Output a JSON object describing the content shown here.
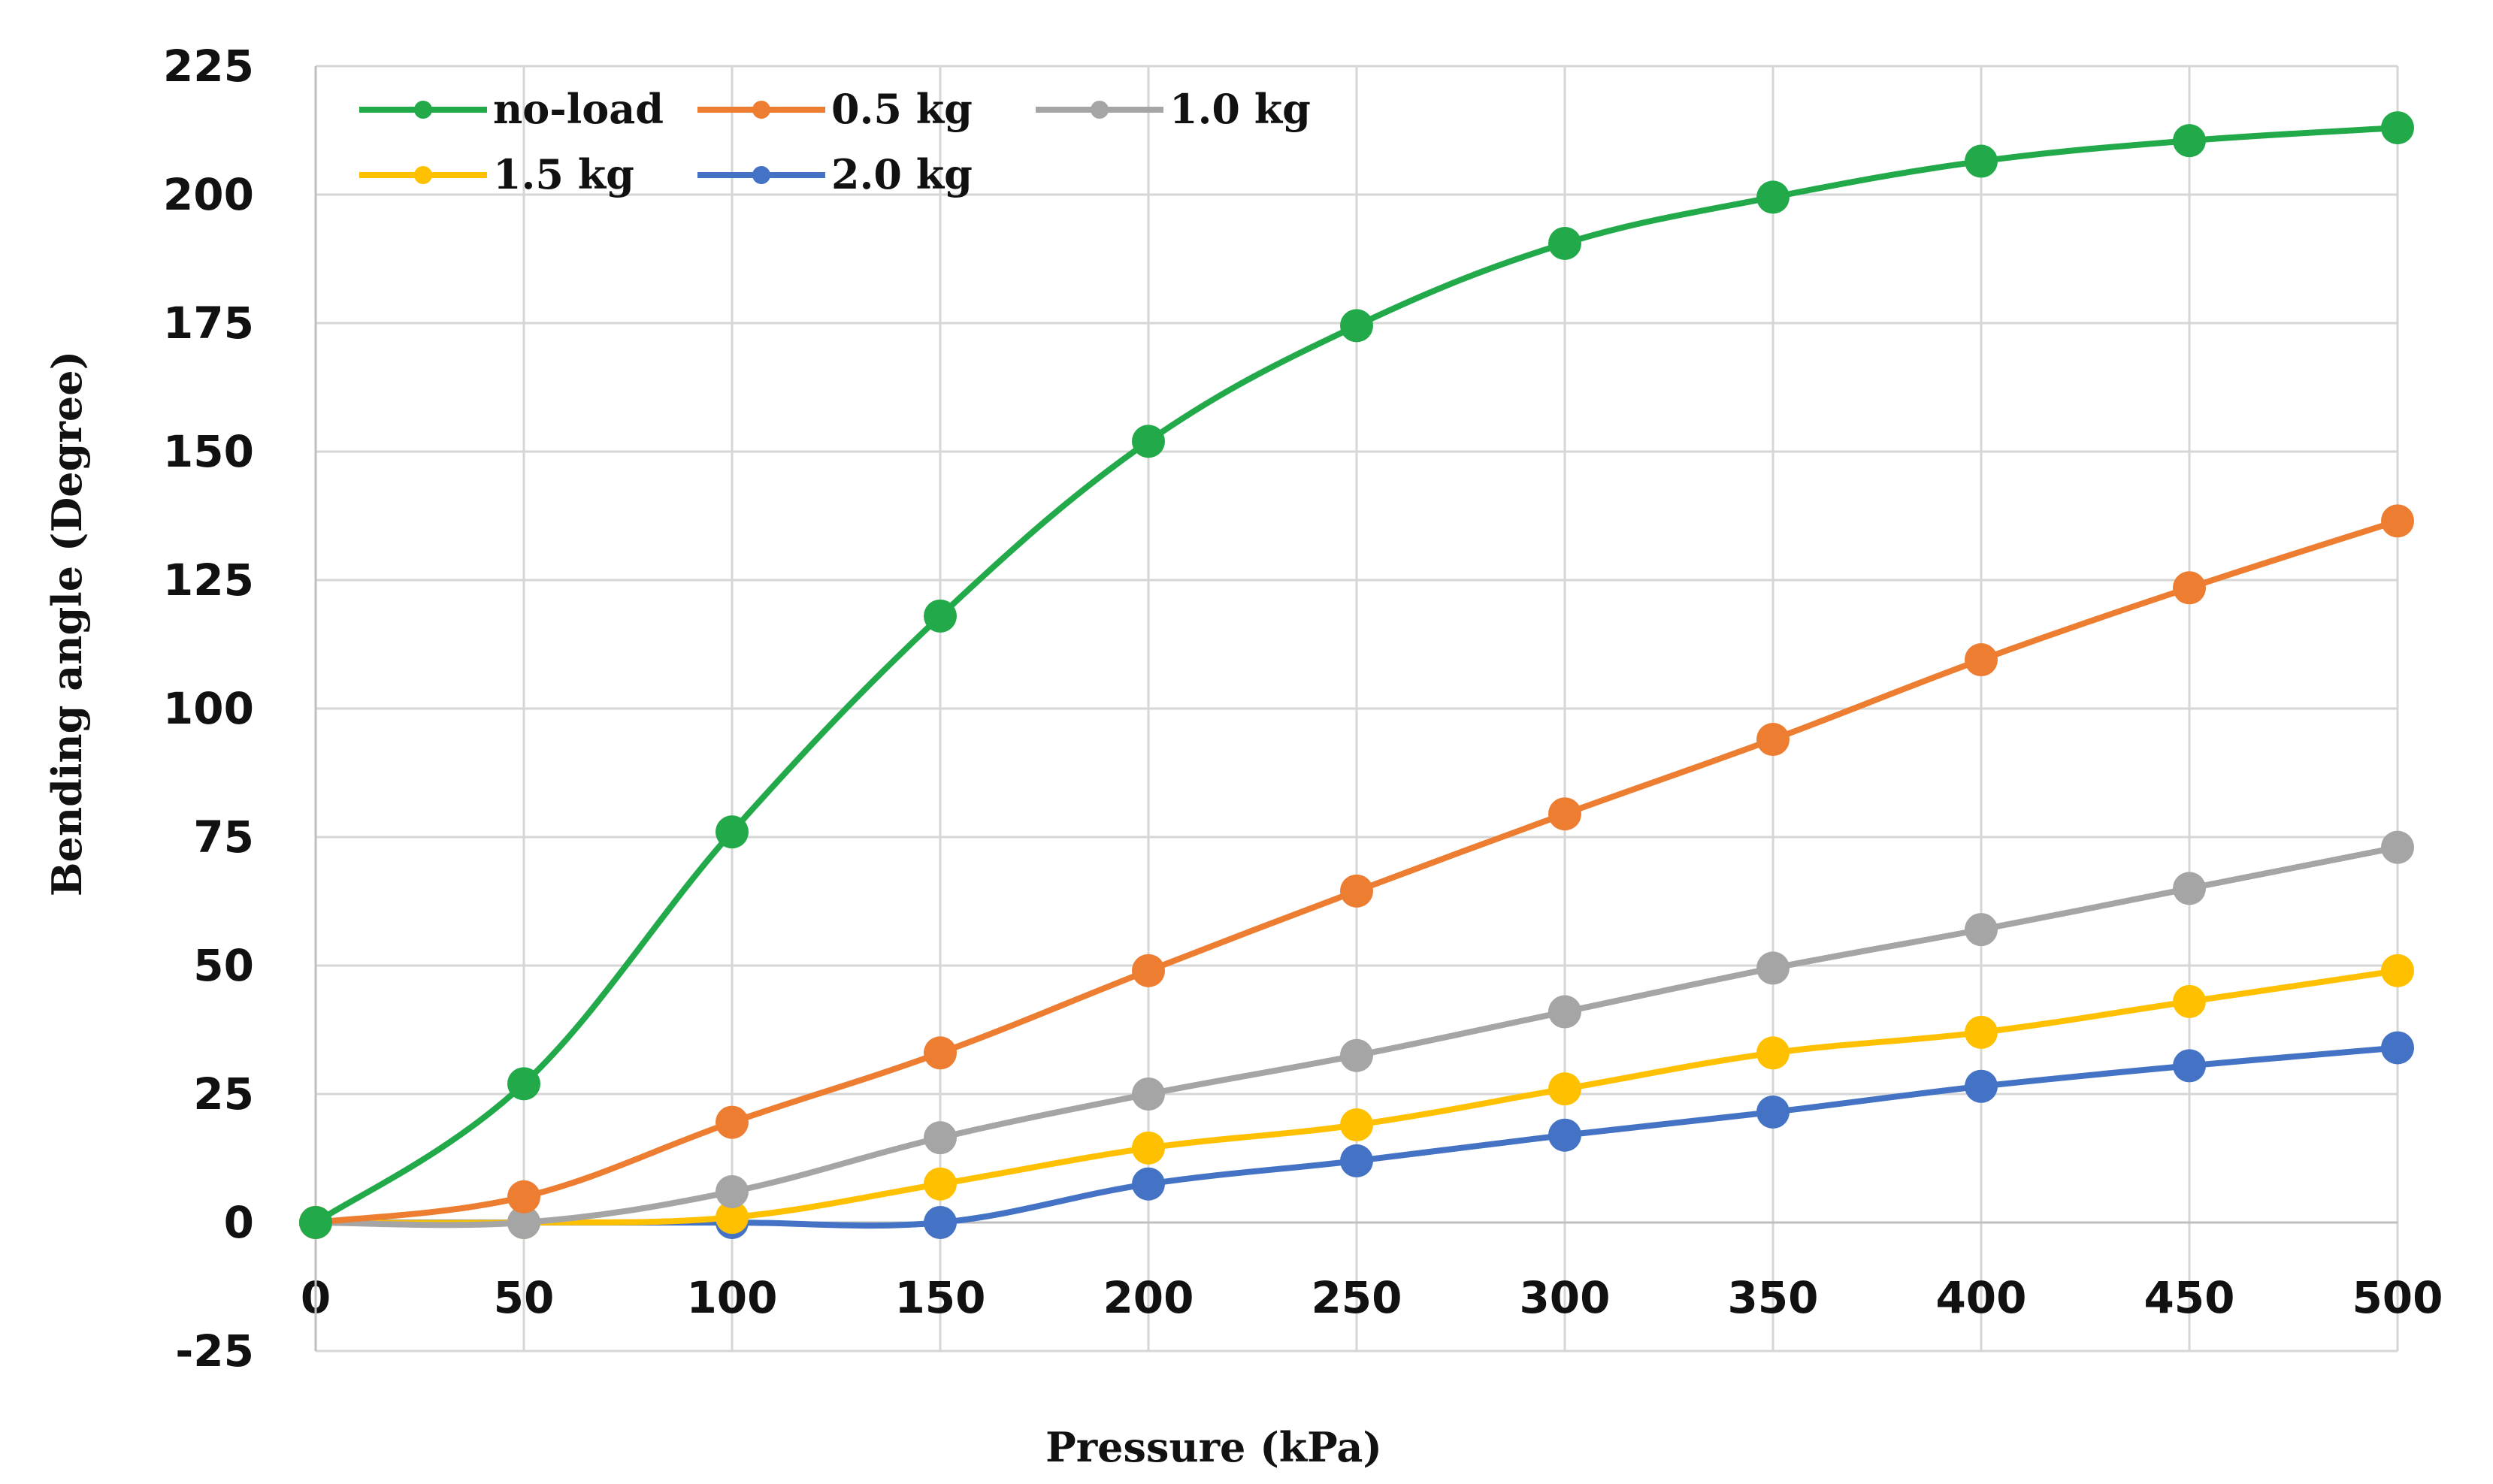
{
  "chart_data": {
    "type": "line",
    "title": "",
    "xlabel": "Pressure (kPa)",
    "ylabel": "Bending angle (Degree)",
    "x": [
      0,
      50,
      100,
      150,
      200,
      250,
      300,
      350,
      400,
      450,
      500
    ],
    "x_tick_labels": [
      "0",
      "50",
      "100",
      "150",
      "200",
      "250",
      "300",
      "350",
      "400",
      "450",
      "500"
    ],
    "xlim": [
      0,
      500
    ],
    "ylim": [
      -25,
      225
    ],
    "y_ticks": [
      -25,
      0,
      25,
      50,
      75,
      100,
      125,
      150,
      175,
      200,
      225
    ],
    "y_tick_labels": [
      "-25",
      "0",
      "25",
      "50",
      "75",
      "100",
      "125",
      "150",
      "175",
      "200",
      "225"
    ],
    "grid": true,
    "legend_position": "top-left",
    "series": [
      {
        "name": "no-load",
        "color": "#22aa4a",
        "smooth": true,
        "values": [
          0,
          27,
          76,
          118,
          152,
          174.5,
          190.5,
          199.5,
          206.5,
          210.5,
          213
        ]
      },
      {
        "name": "0.5 kg",
        "color": "#ed7d31",
        "smooth": true,
        "values": [
          0,
          5,
          19.5,
          33,
          49,
          64.5,
          79.5,
          94,
          109.5,
          123.5,
          136.5
        ]
      },
      {
        "name": "1.0 kg",
        "color": "#a5a5a5",
        "smooth": true,
        "values": [
          0,
          0,
          6,
          16.5,
          25,
          32.5,
          41,
          49.5,
          57,
          65,
          73
        ]
      },
      {
        "name": "1.5 kg",
        "color": "#ffc000",
        "smooth": true,
        "values": [
          0,
          0,
          1,
          7.5,
          14.5,
          19,
          26,
          33,
          37,
          43,
          49
        ]
      },
      {
        "name": "2.0 kg",
        "color": "#4472c4",
        "smooth": true,
        "values": [
          0,
          0,
          0,
          0,
          7.5,
          12,
          17,
          21.5,
          26.5,
          30.5,
          34
        ]
      }
    ]
  }
}
